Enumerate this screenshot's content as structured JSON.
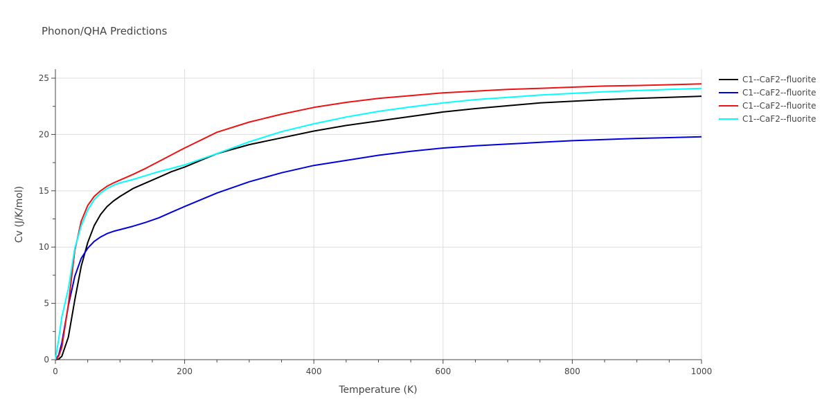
{
  "chart_data": {
    "type": "line",
    "title": "Phonon/QHA Predictions",
    "xlabel": "Temperature (K)",
    "ylabel": "Cv (J/K/mol)",
    "xlim": [
      0,
      1000
    ],
    "ylim": [
      0,
      25.8
    ],
    "xticks": [
      0,
      200,
      400,
      600,
      800,
      1000
    ],
    "yticks": [
      0,
      5,
      10,
      15,
      20,
      25
    ],
    "grid": true,
    "legend_position": "top-right",
    "series": [
      {
        "name": "C1--CaF2--fluorite",
        "color": "#000000",
        "x": [
          0,
          5,
          10,
          20,
          30,
          40,
          50,
          60,
          70,
          80,
          90,
          100,
          120,
          140,
          160,
          180,
          200,
          250,
          300,
          350,
          400,
          450,
          500,
          550,
          600,
          650,
          700,
          750,
          800,
          850,
          900,
          950,
          1000
        ],
        "y": [
          0,
          0.05,
          0.3,
          2.0,
          5.3,
          8.3,
          10.4,
          11.9,
          12.9,
          13.6,
          14.1,
          14.5,
          15.2,
          15.7,
          16.2,
          16.7,
          17.1,
          18.3,
          19.1,
          19.7,
          20.3,
          20.8,
          21.2,
          21.6,
          22.0,
          22.3,
          22.55,
          22.8,
          22.95,
          23.1,
          23.2,
          23.3,
          23.4
        ]
      },
      {
        "name": "C1--CaF2--fluorite",
        "color": "#0000dd",
        "x": [
          0,
          5,
          10,
          20,
          30,
          40,
          50,
          60,
          70,
          80,
          90,
          100,
          120,
          140,
          160,
          180,
          200,
          250,
          300,
          350,
          400,
          450,
          500,
          550,
          600,
          650,
          700,
          750,
          800,
          850,
          900,
          950,
          1000
        ],
        "y": [
          0,
          0.4,
          1.5,
          4.8,
          7.4,
          9.0,
          9.9,
          10.5,
          10.9,
          11.2,
          11.4,
          11.55,
          11.85,
          12.2,
          12.6,
          13.1,
          13.6,
          14.8,
          15.8,
          16.6,
          17.25,
          17.7,
          18.15,
          18.5,
          18.8,
          19.0,
          19.15,
          19.3,
          19.45,
          19.55,
          19.65,
          19.72,
          19.8
        ]
      },
      {
        "name": "C1--CaF2--fluorite",
        "color": "#ee1111",
        "x": [
          0,
          5,
          10,
          20,
          30,
          40,
          50,
          60,
          70,
          80,
          90,
          100,
          120,
          140,
          160,
          180,
          200,
          250,
          300,
          350,
          400,
          450,
          500,
          550,
          600,
          650,
          700,
          750,
          800,
          850,
          900,
          950,
          1000
        ],
        "y": [
          0,
          0.3,
          1.1,
          4.9,
          9.7,
          12.3,
          13.7,
          14.5,
          15.0,
          15.4,
          15.7,
          15.95,
          16.45,
          17.0,
          17.6,
          18.2,
          18.8,
          20.2,
          21.1,
          21.8,
          22.4,
          22.85,
          23.2,
          23.45,
          23.7,
          23.85,
          24.0,
          24.1,
          24.2,
          24.3,
          24.35,
          24.42,
          24.5
        ]
      },
      {
        "name": "C1--CaF2--fluorite",
        "color": "#00ffff",
        "x": [
          0,
          5,
          10,
          20,
          30,
          40,
          50,
          60,
          70,
          80,
          90,
          100,
          120,
          140,
          160,
          180,
          200,
          250,
          300,
          350,
          400,
          450,
          500,
          550,
          600,
          650,
          700,
          750,
          800,
          850,
          900,
          950,
          1000
        ],
        "y": [
          0,
          1.8,
          3.8,
          6.3,
          9.9,
          11.9,
          13.3,
          14.2,
          14.8,
          15.2,
          15.5,
          15.7,
          16.0,
          16.35,
          16.7,
          17.0,
          17.3,
          18.3,
          19.35,
          20.25,
          20.95,
          21.55,
          22.05,
          22.45,
          22.8,
          23.1,
          23.3,
          23.5,
          23.65,
          23.8,
          23.9,
          24.0,
          24.1
        ]
      }
    ]
  }
}
